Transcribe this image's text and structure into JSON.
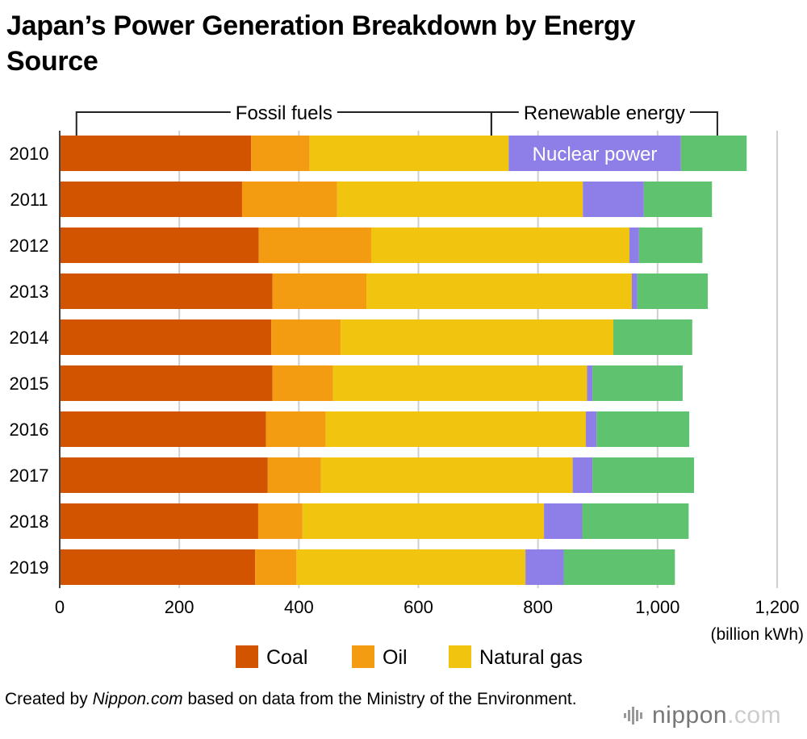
{
  "page": {
    "title": "Japan’s Power Generation Breakdown by Energy Source",
    "footer_prefix": "Created by ",
    "footer_source": "Nippon.com",
    "footer_suffix": " based on data from the Ministry of the Environment.",
    "logo_text_main": "nippon",
    "logo_text_dot": ".com"
  },
  "chart_data": {
    "type": "bar",
    "orientation": "horizontal",
    "stacked": true,
    "title": "Japan’s Power Generation Breakdown by Energy Source",
    "xlabel": "(billion kWh)",
    "ylabel": "",
    "xlim": [
      0,
      1200
    ],
    "xticks": [
      0,
      200,
      400,
      600,
      800,
      1000,
      1200
    ],
    "xtick_labels": [
      "0",
      "200",
      "400",
      "600",
      "800",
      "1,000",
      "1,200"
    ],
    "grid": true,
    "categories": [
      "2010",
      "2011",
      "2012",
      "2013",
      "2014",
      "2015",
      "2016",
      "2017",
      "2018",
      "2019"
    ],
    "series": [
      {
        "name": "Coal",
        "color": "#d35400",
        "in_legend": true,
        "values": [
          320,
          305,
          333,
          356,
          354,
          356,
          345,
          348,
          332,
          327
        ]
      },
      {
        "name": "Oil",
        "color": "#f39c12",
        "in_legend": true,
        "values": [
          98,
          159,
          188,
          157,
          116,
          101,
          100,
          89,
          74,
          69
        ]
      },
      {
        "name": "Natural gas",
        "color": "#f1c40f",
        "in_legend": true,
        "values": [
          333,
          411,
          432,
          444,
          456,
          425,
          435,
          421,
          404,
          383
        ]
      },
      {
        "name": "Nuclear power",
        "color": "#8e7fe8",
        "in_legend": false,
        "values": [
          288,
          102,
          16,
          9,
          0,
          9,
          18,
          33,
          64,
          64
        ]
      },
      {
        "name": "Renewable energy",
        "color": "#5ec26f",
        "in_legend": false,
        "values": [
          110,
          114,
          106,
          118,
          132,
          151,
          155,
          170,
          178,
          186
        ]
      }
    ],
    "annotations": {
      "fossil_label": "Fossil fuels",
      "renewable_label": "Renewable energy",
      "nuclear_label": "Nuclear power",
      "fossil_bracket_range": [
        28,
        722
      ],
      "renewable_bracket_range": [
        722,
        1100
      ]
    },
    "legend": {
      "position": "bottom",
      "items": [
        "Coal",
        "Oil",
        "Natural gas"
      ]
    }
  }
}
